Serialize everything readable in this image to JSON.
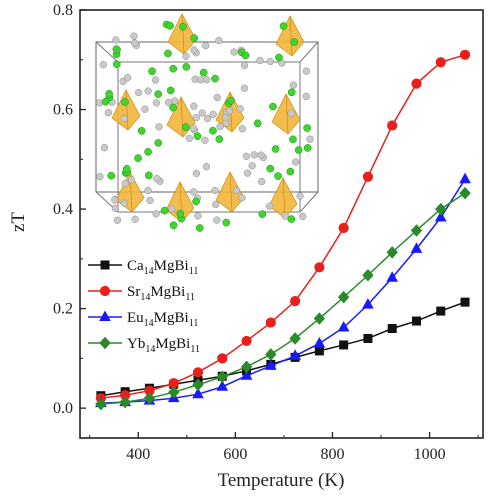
{
  "chart_data": {
    "type": "line",
    "xlabel": "Temperature (K)",
    "ylabel": "zT",
    "xlim": [
      280,
      1110
    ],
    "ylim": [
      -0.06,
      0.8
    ],
    "x_ticks": [
      400,
      600,
      800,
      1000
    ],
    "y_ticks": [
      0.0,
      0.2,
      0.4,
      0.6,
      0.8
    ],
    "x_tick_labels": [
      "400",
      "600",
      "800",
      "1000"
    ],
    "y_tick_labels": [
      "0.0",
      "0.2",
      "0.4",
      "0.6",
      "0.8"
    ],
    "legend_position": "lower-left",
    "inset": "crystal structure unit cell",
    "series": [
      {
        "name": "Ca14MgBi11",
        "formula": {
          "el1": "Ca",
          "sub1": "14",
          "el2": "MgBi",
          "sub2": "11"
        },
        "color": "#111111",
        "marker": "square",
        "x": [
          323,
          373,
          423,
          473,
          523,
          573,
          623,
          673,
          723,
          773,
          823,
          873,
          923,
          973,
          1023,
          1073
        ],
        "y": [
          0.025,
          0.033,
          0.04,
          0.048,
          0.056,
          0.064,
          0.075,
          0.088,
          0.102,
          0.115,
          0.127,
          0.14,
          0.16,
          0.175,
          0.195,
          0.213
        ]
      },
      {
        "name": "Sr14MgBi11",
        "formula": {
          "el1": "Sr",
          "sub1": "14",
          "el2": "MgBi",
          "sub2": "11"
        },
        "color": "#e8201c",
        "marker": "circle",
        "x": [
          323,
          373,
          423,
          473,
          523,
          573,
          623,
          673,
          723,
          773,
          823,
          873,
          923,
          973,
          1023,
          1073
        ],
        "y": [
          0.02,
          0.026,
          0.035,
          0.05,
          0.072,
          0.1,
          0.135,
          0.172,
          0.215,
          0.283,
          0.362,
          0.465,
          0.568,
          0.652,
          0.695,
          0.71
        ]
      },
      {
        "name": "Eu14MgBi11",
        "formula": {
          "el1": "Eu",
          "sub1": "14",
          "el2": "MgBi",
          "sub2": "11"
        },
        "color": "#1a1aff",
        "marker": "triangle",
        "x": [
          323,
          373,
          423,
          473,
          523,
          573,
          623,
          673,
          723,
          773,
          823,
          873,
          923,
          973,
          1023,
          1073
        ],
        "y": [
          0.01,
          0.012,
          0.015,
          0.02,
          0.028,
          0.043,
          0.065,
          0.085,
          0.105,
          0.13,
          0.162,
          0.208,
          0.262,
          0.32,
          0.383,
          0.46
        ]
      },
      {
        "name": "Yb14MgBi11",
        "formula": {
          "el1": "Yb",
          "sub1": "14",
          "el2": "MgBi",
          "sub2": "11"
        },
        "color": "#2a8a2a",
        "marker": "diamond",
        "x": [
          323,
          373,
          423,
          473,
          523,
          573,
          623,
          673,
          723,
          773,
          823,
          873,
          923,
          973,
          1023,
          1073
        ],
        "y": [
          0.008,
          0.012,
          0.02,
          0.032,
          0.047,
          0.063,
          0.083,
          0.108,
          0.14,
          0.18,
          0.223,
          0.267,
          0.313,
          0.357,
          0.4,
          0.432
        ]
      }
    ]
  }
}
